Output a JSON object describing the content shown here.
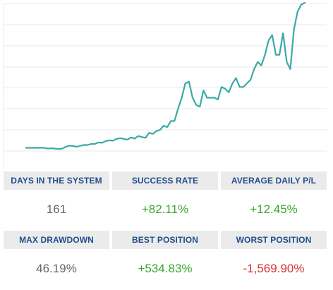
{
  "colors": {
    "line": "#3aaaa6",
    "grid": "#e8e8e8",
    "label_bg": "#ebebeb",
    "label_text": "#1f4e8c",
    "neutral": "#666666",
    "positive": "#3aa82e",
    "negative": "#d83232"
  },
  "chart_data": {
    "type": "line",
    "title": "",
    "xlabel": "",
    "ylabel": "",
    "grid": true,
    "legend": "none",
    "series": [
      {
        "values": [
          0,
          0,
          0,
          0,
          0,
          0,
          -0.2,
          -0.1,
          -0.2,
          -0.3,
          -0.2,
          0.3,
          0.6,
          0.5,
          0.3,
          0.6,
          0.8,
          0.8,
          1.1,
          1.1,
          1.5,
          1.4,
          1.9,
          2.1,
          2.0,
          2.5,
          2.7,
          2.5,
          2.3,
          2.9,
          2.6,
          3.3,
          3.0,
          2.8,
          4.2,
          3.9,
          4.7,
          5.0,
          6.2,
          5.8,
          7.5,
          7.5,
          11,
          14,
          18,
          18.5,
          14,
          12,
          11.5,
          16,
          14,
          14,
          14,
          13.5,
          17,
          16.5,
          15.5,
          18,
          19.5,
          17,
          17,
          18,
          19,
          22,
          24,
          23,
          26,
          30,
          31.5,
          26,
          26,
          32,
          24,
          22,
          33,
          38,
          40,
          40.5
        ]
      }
    ],
    "ylim": [
      -6,
      40.5
    ]
  },
  "stats": [
    {
      "label": "DAYS IN THE SYSTEM",
      "value": "161",
      "tone": "neutral"
    },
    {
      "label": "SUCCESS RATE",
      "value": "+82.11%",
      "tone": "positive"
    },
    {
      "label": "AVERAGE DAILY P/L",
      "value": "+12.45%",
      "tone": "positive"
    },
    {
      "label": "MAX DRAWDOWN",
      "value": "46.19%",
      "tone": "neutral"
    },
    {
      "label": "BEST POSITION",
      "value": "+534.83%",
      "tone": "positive"
    },
    {
      "label": "WORST POSITION",
      "value": "-1,569.90%",
      "tone": "negative"
    }
  ]
}
